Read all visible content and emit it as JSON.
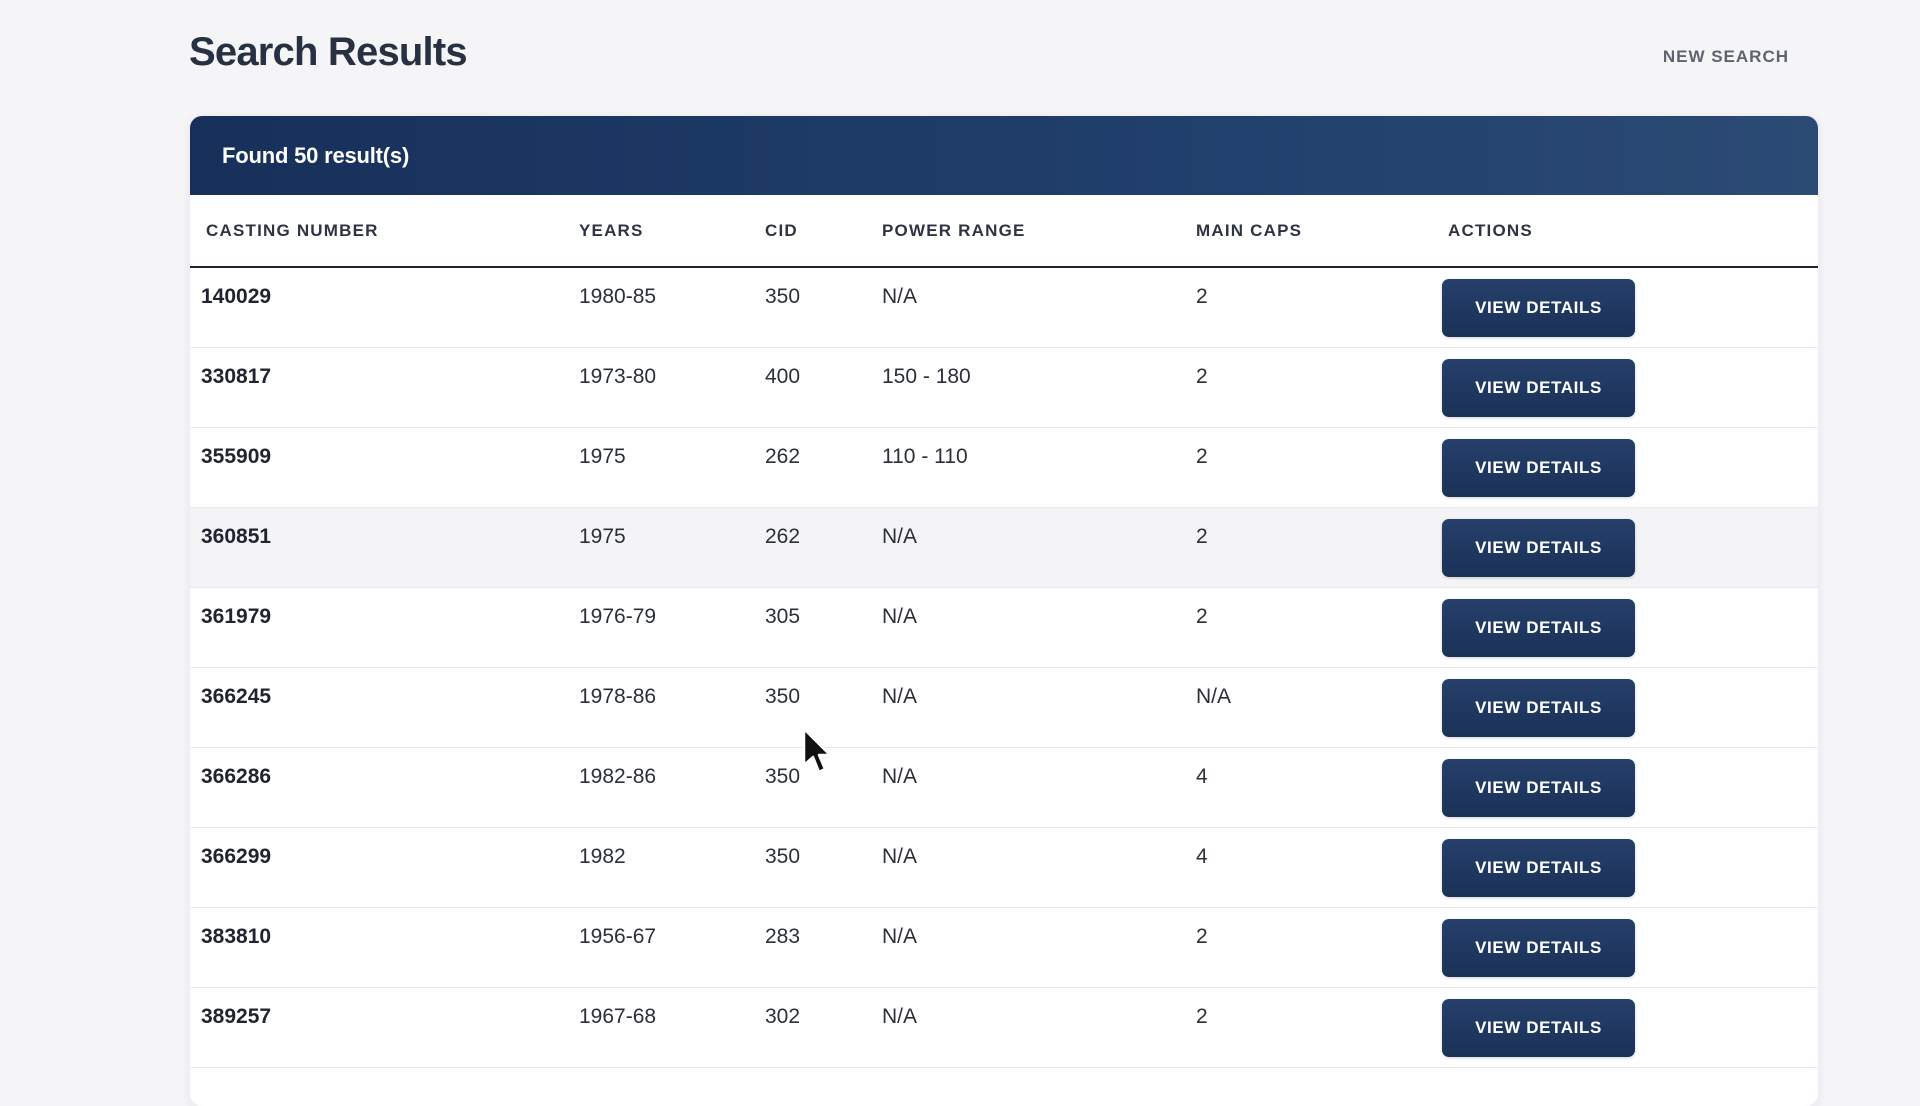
{
  "page": {
    "title": "Search Results",
    "new_search_label": "NEW SEARCH"
  },
  "results": {
    "count_label": "Found 50 result(s)",
    "columns": [
      "CASTING NUMBER",
      "YEARS",
      "CID",
      "POWER RANGE",
      "MAIN CAPS",
      "ACTIONS"
    ],
    "rows": [
      {
        "casting": "140029",
        "years": "1980-85",
        "cid": "350",
        "power": "N/A",
        "caps": "2",
        "action": "VIEW DETAILS"
      },
      {
        "casting": "330817",
        "years": "1973-80",
        "cid": "400",
        "power": "150 - 180",
        "caps": "2",
        "action": "VIEW DETAILS"
      },
      {
        "casting": "355909",
        "years": "1975",
        "cid": "262",
        "power": "110 - 110",
        "caps": "2",
        "action": "VIEW DETAILS"
      },
      {
        "casting": "360851",
        "years": "1975",
        "cid": "262",
        "power": "N/A",
        "caps": "2",
        "action": "VIEW DETAILS"
      },
      {
        "casting": "361979",
        "years": "1976-79",
        "cid": "305",
        "power": "N/A",
        "caps": "2",
        "action": "VIEW DETAILS"
      },
      {
        "casting": "366245",
        "years": "1978-86",
        "cid": "350",
        "power": "N/A",
        "caps": "N/A",
        "action": "VIEW DETAILS"
      },
      {
        "casting": "366286",
        "years": "1982-86",
        "cid": "350",
        "power": "N/A",
        "caps": "4",
        "action": "VIEW DETAILS"
      },
      {
        "casting": "366299",
        "years": "1982",
        "cid": "350",
        "power": "N/A",
        "caps": "4",
        "action": "VIEW DETAILS"
      },
      {
        "casting": "383810",
        "years": "1956-67",
        "cid": "283",
        "power": "N/A",
        "caps": "2",
        "action": "VIEW DETAILS"
      },
      {
        "casting": "389257",
        "years": "1967-68",
        "cid": "302",
        "power": "N/A",
        "caps": "2",
        "action": "VIEW DETAILS"
      }
    ],
    "hovered_row_index": 3
  },
  "colors": {
    "header_gradient_start": "#17305a",
    "header_gradient_end": "#2b4a74",
    "button": "#1f3760",
    "page_background": "#f5f5f8"
  },
  "icons": {
    "cursor": "mouse-pointer-icon"
  }
}
